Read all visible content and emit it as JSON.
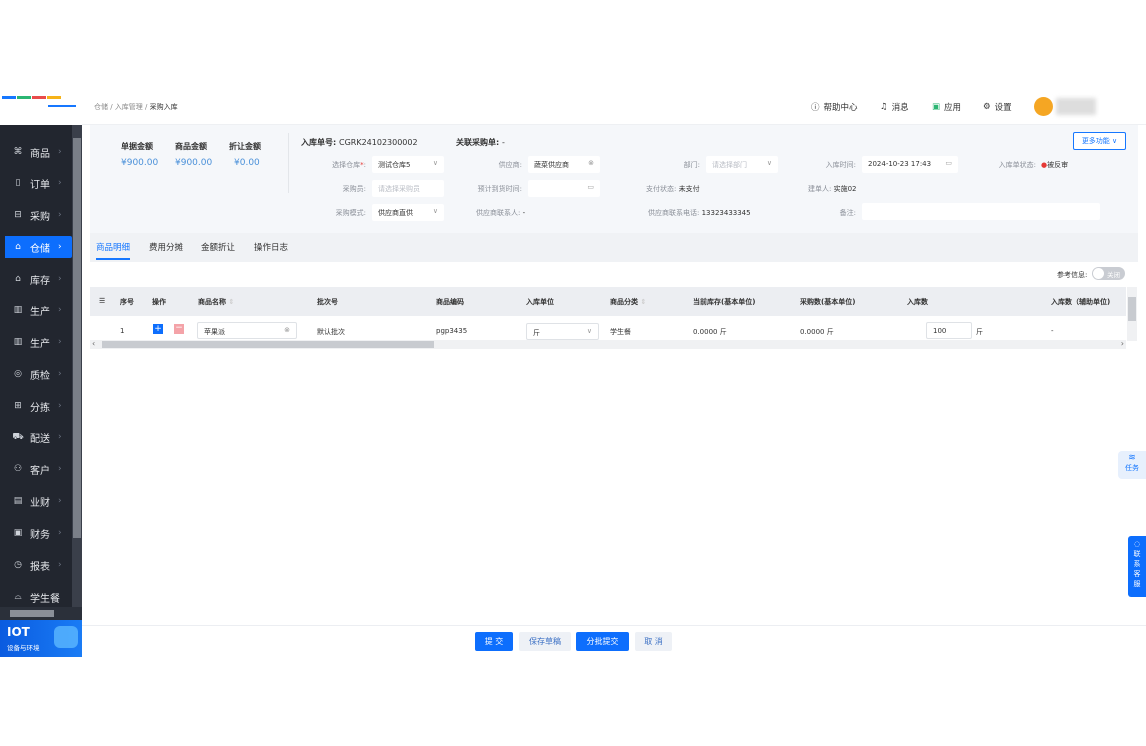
{
  "breadcrumb": [
    "仓储",
    "入库管理",
    "采购入库"
  ],
  "header": {
    "help": "帮助中心",
    "messages": "消息",
    "apps": "应用",
    "settings": "设置"
  },
  "sidebar": {
    "items": [
      {
        "label": "商品",
        "icon": "grid-icon"
      },
      {
        "label": "订单",
        "icon": "clipboard-icon"
      },
      {
        "label": "采购",
        "icon": "basket-icon"
      },
      {
        "label": "仓储",
        "icon": "warehouse-icon",
        "active": true
      },
      {
        "label": "库存",
        "icon": "inventory-icon"
      },
      {
        "label": "生产",
        "icon": "factory-icon"
      },
      {
        "label": "生产",
        "icon": "factory-icon"
      },
      {
        "label": "质检",
        "icon": "shield-icon"
      },
      {
        "label": "分拣",
        "icon": "sort-icon"
      },
      {
        "label": "配送",
        "icon": "truck-icon"
      },
      {
        "label": "客户",
        "icon": "users-icon"
      },
      {
        "label": "业财",
        "icon": "chart-icon"
      },
      {
        "label": "财务",
        "icon": "finance-icon"
      },
      {
        "label": "报表",
        "icon": "clock-icon"
      },
      {
        "label": "学生餐",
        "icon": "meal-icon"
      }
    ],
    "iot_title": "IOT",
    "iot_sub": "设备与环境"
  },
  "summary": [
    {
      "label": "单据金额",
      "value": "¥900.00"
    },
    {
      "label": "商品金额",
      "value": "¥900.00"
    },
    {
      "label": "折让金额",
      "value": "¥0.00"
    }
  ],
  "form": {
    "order_no_label": "入库单号:",
    "order_no": "CGRK24102300002",
    "related_label": "关联采购单:",
    "related": "-",
    "more_button": "更多功能",
    "warehouse_label": "选择仓库",
    "warehouse": "测试仓库5",
    "supplier_label": "供应商:",
    "supplier": "蔬菜供应商",
    "dept_label": "部门:",
    "dept_placeholder": "请选择部门",
    "time_label": "入库时间:",
    "time": "2024-10-23 17:43",
    "status_label": "入库单状态:",
    "status": "被反审",
    "status_color": "#e53935",
    "buyer_label": "采购员:",
    "buyer_placeholder": "请选择采购员",
    "arrival_label": "预计到货时间:",
    "pay_label": "支付状态:",
    "pay": "未支付",
    "creator_label": "建单人:",
    "creator": "实施02",
    "mode_label": "采购模式:",
    "mode": "供应商直供",
    "contact_label": "供应商联系人:",
    "contact": "-",
    "phone_label": "供应商联系电话:",
    "phone": "13323433345",
    "note_label": "备注:"
  },
  "tabs": [
    "商品明细",
    "费用分摊",
    "金额折让",
    "操作日志"
  ],
  "ref_label": "参考信息:",
  "ref_toggle": "关闭",
  "table": {
    "headers": [
      "序号",
      "操作",
      "商品名称",
      "批次号",
      "商品编码",
      "入库单位",
      "商品分类",
      "当前库存(基本单位)",
      "采购数(基本单位)",
      "入库数",
      "入库数（辅助单位)"
    ],
    "rows": [
      {
        "index": "1",
        "name": "苹果派",
        "batch": "默认批次",
        "code": "pgp3435",
        "unit": "斤",
        "category": "学生餐",
        "stock": "0.0000 斤",
        "purchase": "0.0000 斤",
        "qty": "100",
        "qty_unit": "斤",
        "aux": "-"
      }
    ]
  },
  "footer": {
    "submit": "提 交",
    "draft": "保存草稿",
    "batch_submit": "分批提交",
    "cancel": "取 消"
  },
  "float": {
    "tasks": "任务",
    "service": "联系客服"
  },
  "accent": "#0d6efd"
}
